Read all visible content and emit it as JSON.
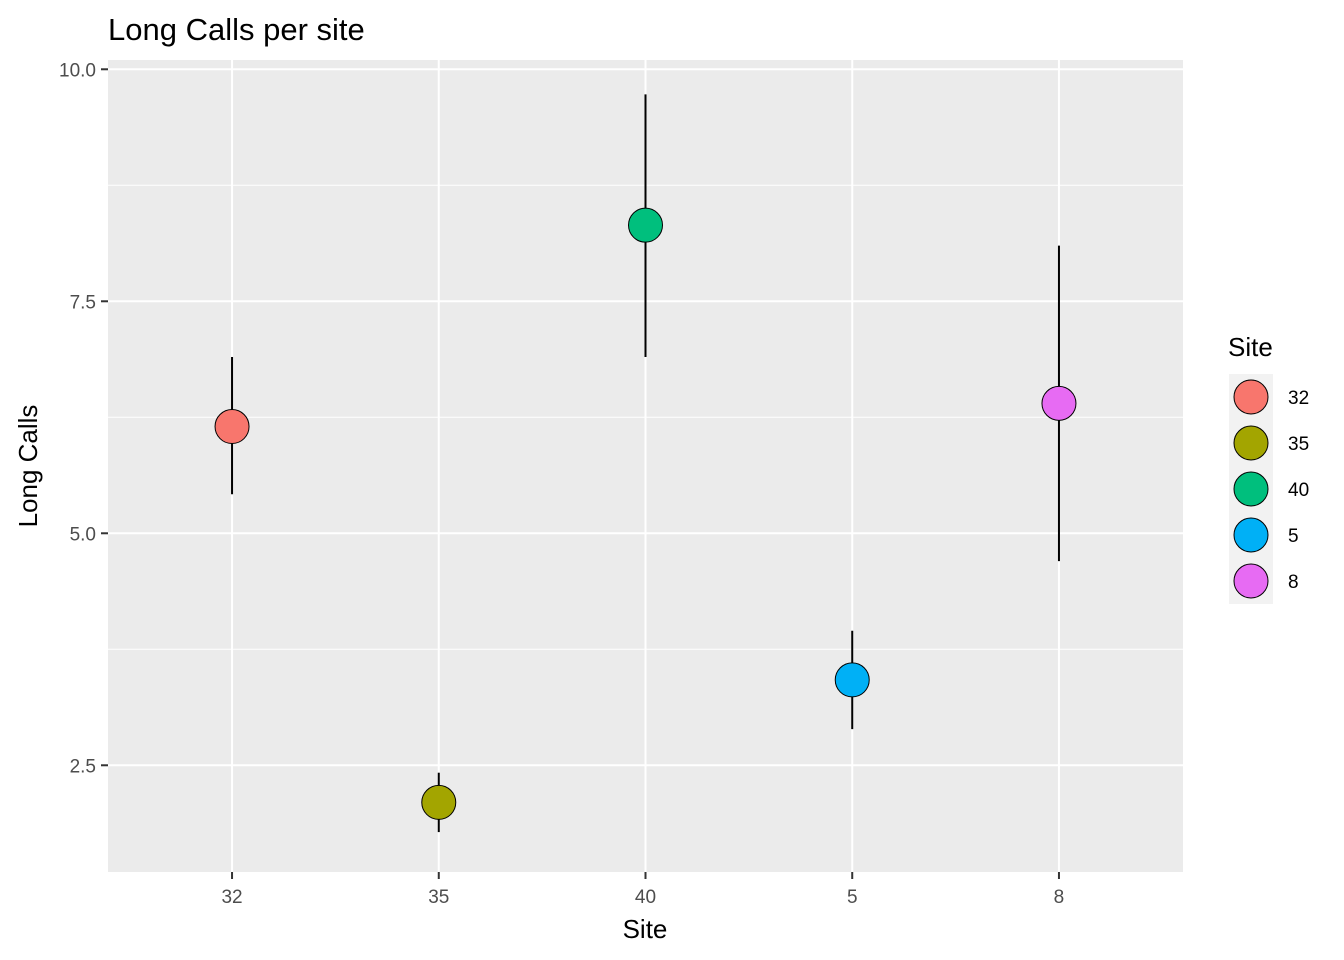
{
  "chart_data": {
    "type": "scatter",
    "title": "Long Calls per site",
    "xlabel": "Site",
    "ylabel": "Long Calls",
    "categories": [
      "32",
      "35",
      "40",
      "5",
      "8"
    ],
    "ylim": [
      1.35,
      10.1
    ],
    "yticks": [
      2.5,
      5.0,
      7.5,
      10.0
    ],
    "ytick_labels": [
      "2.5",
      "5.0",
      "7.5",
      "10.0"
    ],
    "points": [
      {
        "site": "32",
        "y": 6.15,
        "ymin": 5.42,
        "ymax": 6.9,
        "color": "#F8766D"
      },
      {
        "site": "35",
        "y": 2.1,
        "ymin": 1.78,
        "ymax": 2.42,
        "color": "#A3A500"
      },
      {
        "site": "40",
        "y": 8.32,
        "ymin": 6.9,
        "ymax": 9.73,
        "color": "#00BF7D"
      },
      {
        "site": "5",
        "y": 3.42,
        "ymin": 2.89,
        "ymax": 3.95,
        "color": "#00B0F6"
      },
      {
        "site": "8",
        "y": 6.4,
        "ymin": 4.7,
        "ymax": 8.1,
        "color": "#E76BF3"
      }
    ],
    "grid": true,
    "legend": {
      "title": "Site",
      "position": "right",
      "entries": [
        {
          "label": "32",
          "color": "#F8766D"
        },
        {
          "label": "35",
          "color": "#A3A500"
        },
        {
          "label": "40",
          "color": "#00BF7D"
        },
        {
          "label": "5",
          "color": "#00B0F6"
        },
        {
          "label": "8",
          "color": "#E76BF3"
        }
      ]
    },
    "panel_color": "#EBEBEB",
    "grid_color": "#FFFFFF"
  }
}
